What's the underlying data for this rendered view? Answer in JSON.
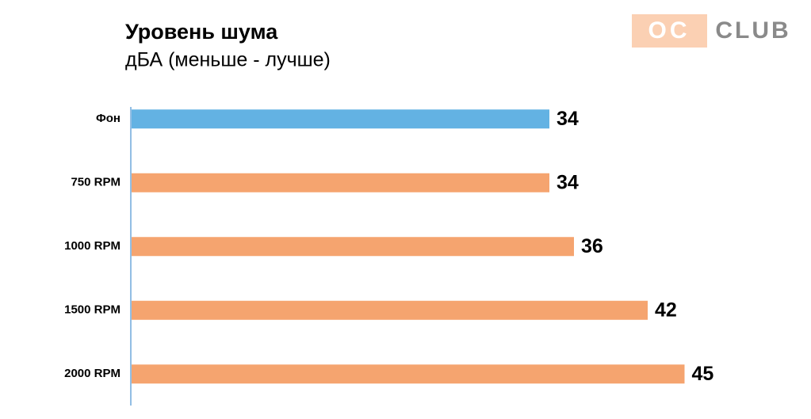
{
  "chart_data": {
    "type": "bar",
    "orientation": "horizontal",
    "title": "Уровень шума",
    "subtitle": "дБА (меньше - лучше)",
    "categories": [
      "Фон",
      "750 RPM",
      "1000 RPM",
      "1500 RPM",
      "2000 RPM"
    ],
    "values": [
      34,
      34,
      36,
      42,
      45
    ],
    "colors": [
      "#63b2e3",
      "#f5a46f",
      "#f5a46f",
      "#f5a46f",
      "#f5a46f"
    ]
  },
  "logo": {
    "left": "OC",
    "right": "CLUB"
  }
}
